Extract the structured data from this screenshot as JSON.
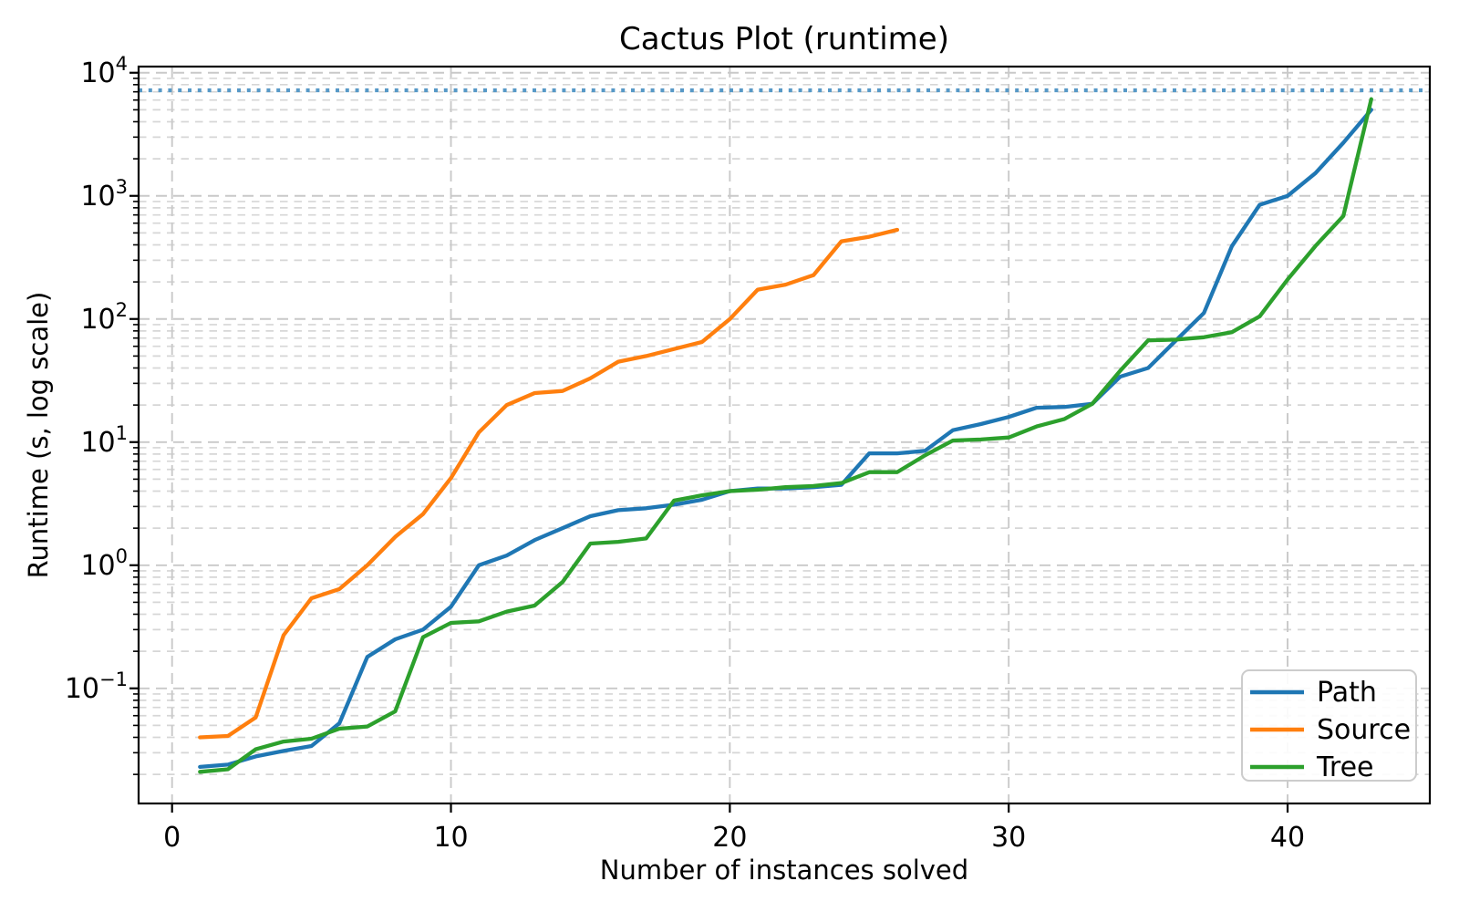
{
  "page": {
    "title": "Cactus Plot (runtime)",
    "xlabel": "Number of instances solved",
    "ylabel": "Runtime (s, log scale)"
  },
  "axes": {
    "x_ticks": [
      {
        "value": 0,
        "label": "0"
      },
      {
        "value": 10,
        "label": "10"
      },
      {
        "value": 20,
        "label": "20"
      },
      {
        "value": 30,
        "label": "30"
      },
      {
        "value": 40,
        "label": "40"
      }
    ],
    "y_ticks": [
      {
        "exponent": -1,
        "base": "10",
        "exp_label": "−1"
      },
      {
        "exponent": 0,
        "base": "10",
        "exp_label": "0"
      },
      {
        "exponent": 1,
        "base": "10",
        "exp_label": "1"
      },
      {
        "exponent": 2,
        "base": "10",
        "exp_label": "2"
      },
      {
        "exponent": 3,
        "base": "10",
        "exp_label": "3"
      },
      {
        "exponent": 4,
        "base": "10",
        "exp_label": "4"
      }
    ],
    "xlim": [
      -1.2,
      45.1
    ],
    "ylim_log10": [
      -1.935,
      4.05
    ]
  },
  "timeout_line": {
    "value": 7200,
    "color": "#5799c7",
    "style": "dotted"
  },
  "legend": {
    "position": "lower right",
    "items": [
      {
        "label": "Path",
        "color": "#1f77b4"
      },
      {
        "label": "Source",
        "color": "#ff7f0e"
      },
      {
        "label": "Tree",
        "color": "#2ca02c"
      }
    ]
  },
  "chart_data": {
    "type": "line",
    "title": "Cactus Plot (runtime)",
    "xlabel": "Number of instances solved",
    "ylabel": "Runtime (s, log scale)",
    "y_scale": "log",
    "grid": "both, dashed",
    "legend_position": "lower right",
    "timeout_seconds": 7200,
    "x_start": 1,
    "x_step": 1,
    "series": [
      {
        "name": "Path",
        "color": "#1f77b4",
        "values": [
          0.023,
          0.024,
          0.028,
          0.031,
          0.034,
          0.052,
          0.18,
          0.25,
          0.3,
          0.46,
          1.0,
          1.2,
          1.6,
          2.0,
          2.5,
          2.8,
          2.9,
          3.1,
          3.4,
          4.0,
          4.2,
          4.2,
          4.3,
          4.5,
          8.1,
          8.1,
          8.5,
          12.5,
          14,
          16,
          19,
          19.3,
          20.5,
          34,
          40,
          67,
          112,
          390,
          845,
          1000,
          1530,
          2700,
          5000
        ]
      },
      {
        "name": "Source",
        "color": "#ff7f0e",
        "values": [
          0.04,
          0.041,
          0.058,
          0.27,
          0.54,
          0.64,
          1.0,
          1.7,
          2.6,
          5.1,
          12,
          20,
          25,
          26,
          33,
          45,
          50,
          57,
          65,
          100,
          173,
          190,
          227,
          427,
          465,
          530
        ]
      },
      {
        "name": "Tree",
        "color": "#2ca02c",
        "values": [
          0.021,
          0.022,
          0.032,
          0.037,
          0.039,
          0.047,
          0.049,
          0.065,
          0.26,
          0.34,
          0.35,
          0.42,
          0.47,
          0.73,
          1.5,
          1.55,
          1.65,
          3.35,
          3.7,
          4.0,
          4.1,
          4.3,
          4.4,
          4.65,
          5.7,
          5.7,
          7.8,
          10.3,
          10.5,
          10.9,
          13.4,
          15.4,
          20.5,
          38,
          67,
          68,
          71,
          78,
          105,
          209,
          392,
          687,
          6100
        ]
      }
    ]
  }
}
